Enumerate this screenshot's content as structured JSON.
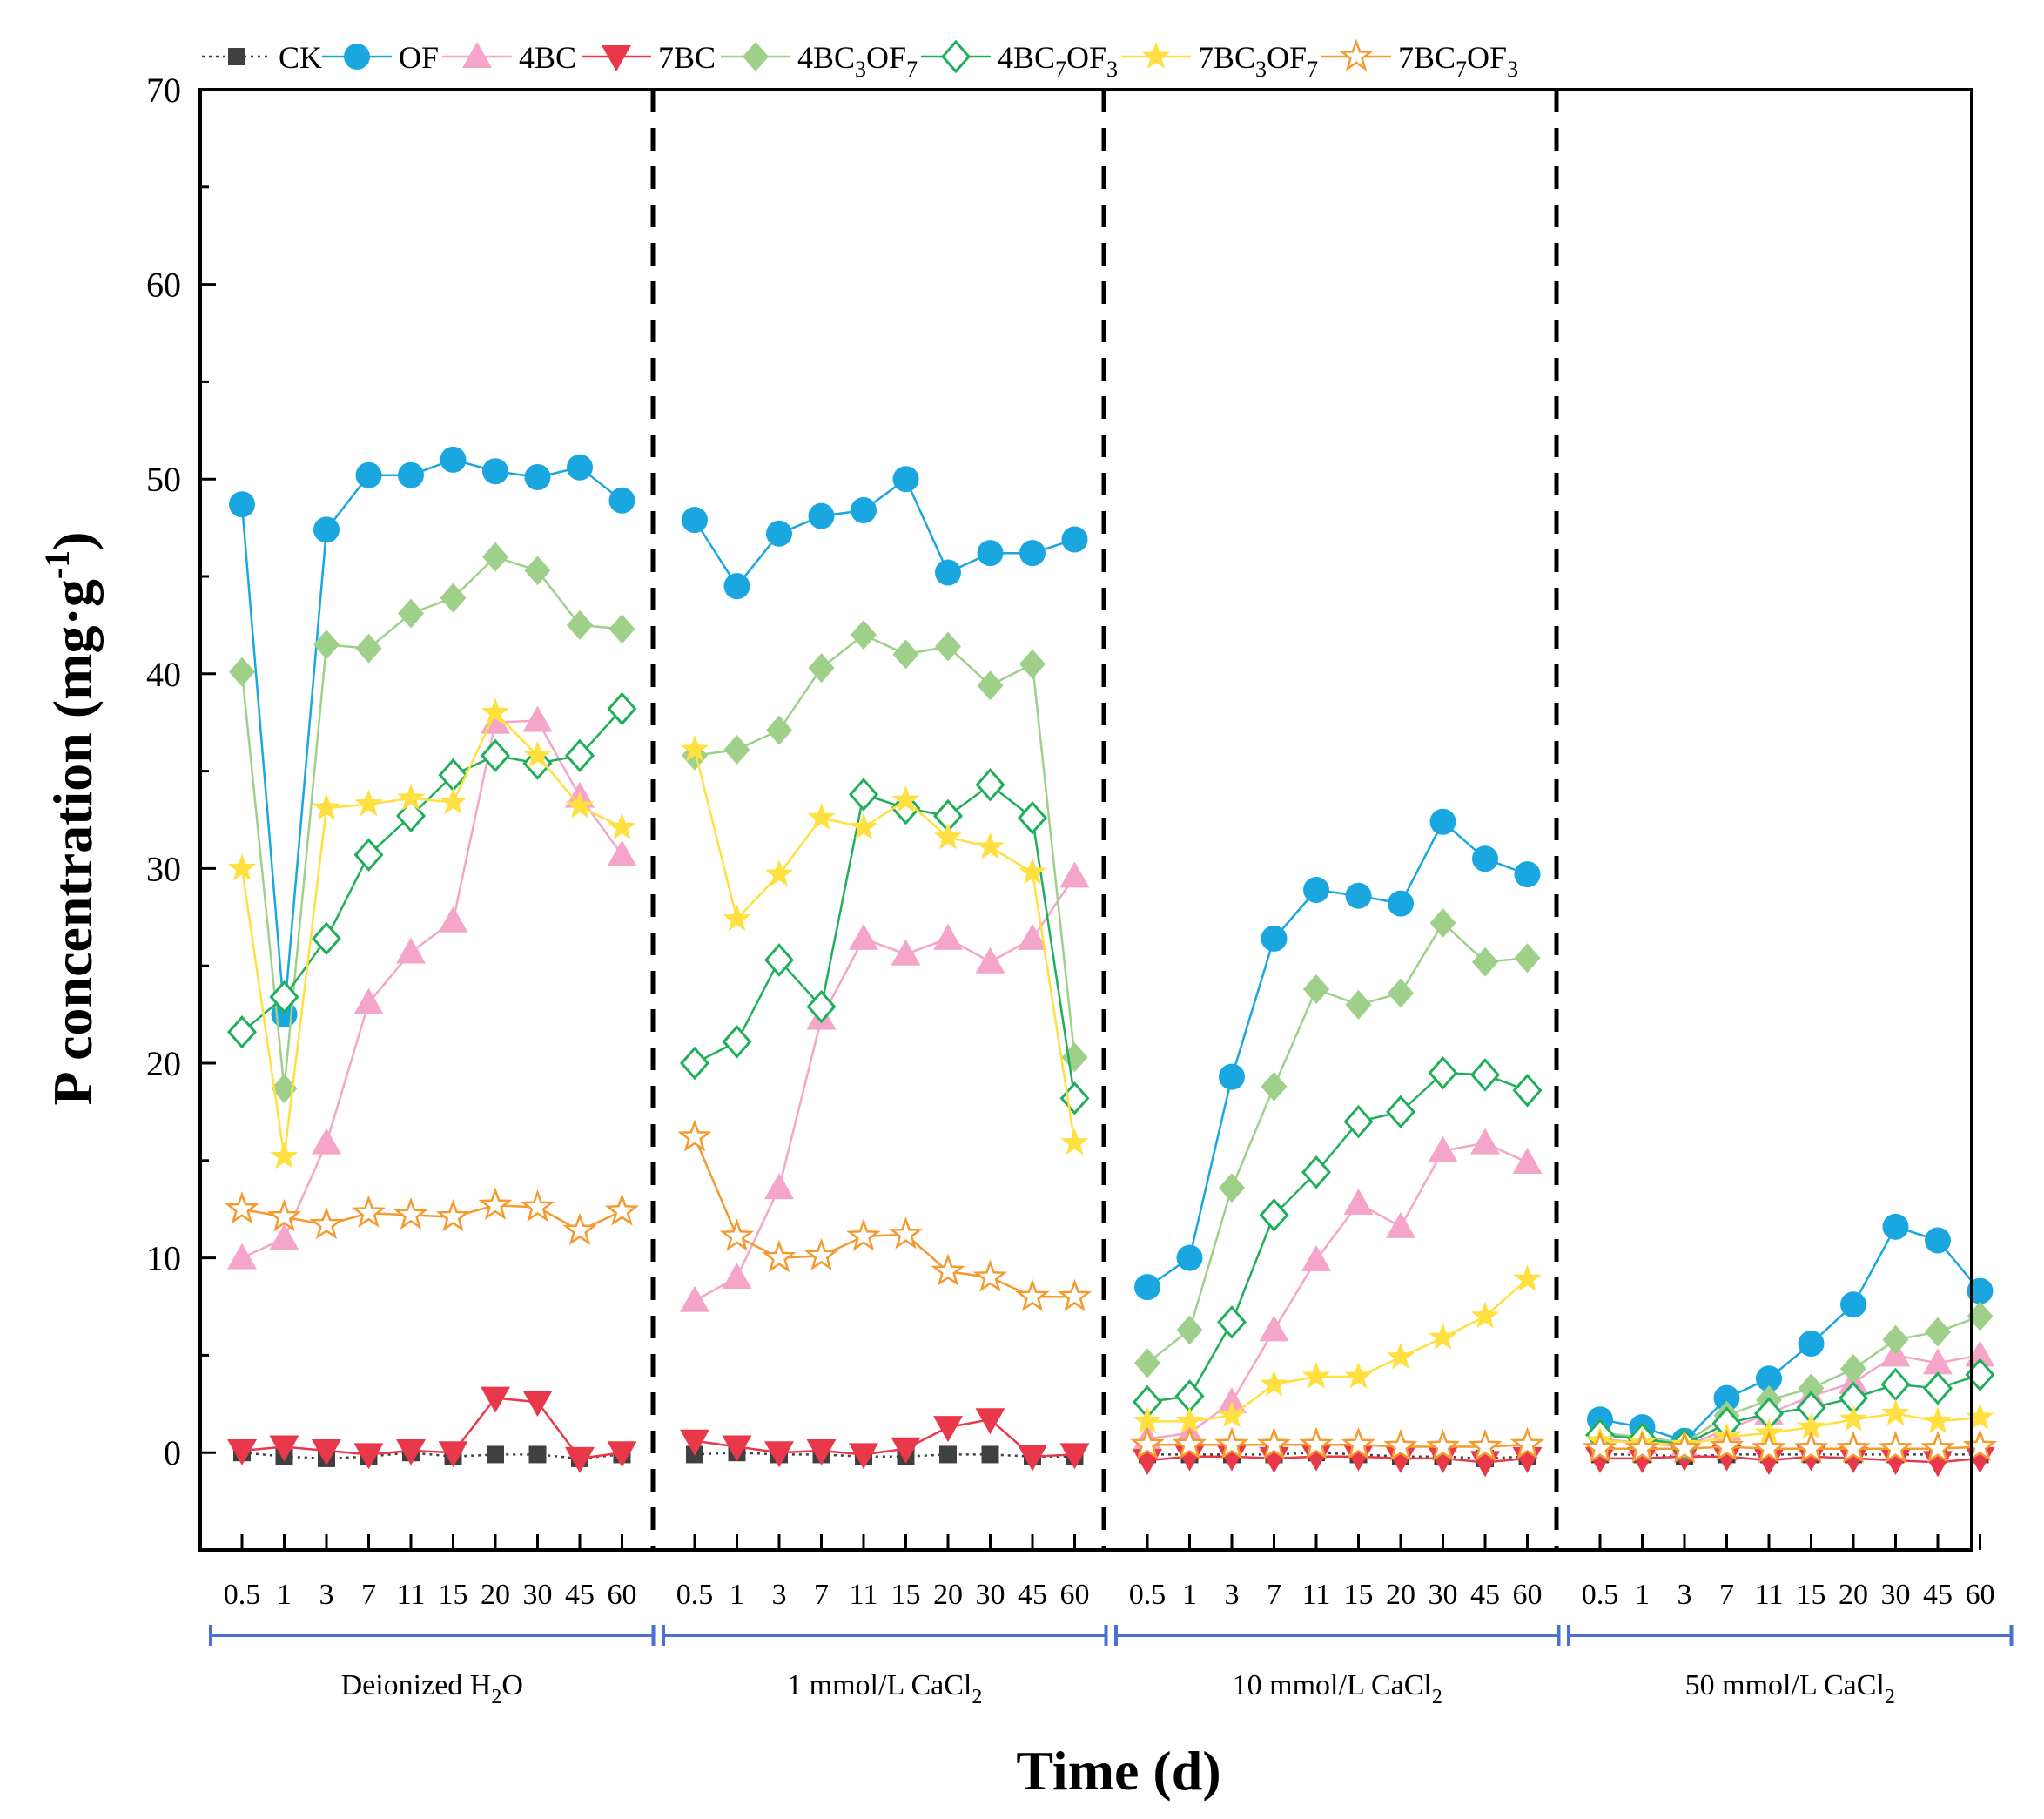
{
  "chart_data": {
    "type": "line",
    "ylabel": "P concentration (mg·g⁻¹)",
    "ylabel_main": "P concentration (mg·g",
    "ylabel_sup": "-1",
    "ylabel_end": ")",
    "xlabel": "Time (d)",
    "ylim": [
      -5,
      70
    ],
    "yticks": [
      0,
      10,
      20,
      30,
      40,
      50,
      60,
      70
    ],
    "x_tick_labels": [
      "0.5",
      "1",
      "3",
      "7",
      "11",
      "15",
      "20",
      "30",
      "45",
      "60"
    ],
    "groups": [
      {
        "label_main": "Deionized H",
        "label_sub": "2",
        "label_end": "O"
      },
      {
        "label_main": "1 mmol/L CaCl",
        "label_sub": "2",
        "label_end": ""
      },
      {
        "label_main": "10 mmol/L CaCl",
        "label_sub": "2",
        "label_end": ""
      },
      {
        "label_main": "50 mmol/L CaCl",
        "label_sub": "2",
        "label_end": ""
      }
    ],
    "legend": [
      {
        "parts": [
          [
            "CK",
            ""
          ]
        ]
      },
      {
        "parts": [
          [
            "OF",
            ""
          ]
        ]
      },
      {
        "parts": [
          [
            "4BC",
            ""
          ]
        ]
      },
      {
        "parts": [
          [
            "7BC",
            ""
          ]
        ]
      },
      {
        "parts": [
          [
            "4BC",
            ""
          ],
          [
            "3",
            "sub"
          ],
          [
            "OF",
            ""
          ],
          [
            "7",
            "sub"
          ]
        ]
      },
      {
        "parts": [
          [
            "4BC",
            ""
          ],
          [
            "7",
            "sub"
          ],
          [
            "OF",
            ""
          ],
          [
            "3",
            "sub"
          ]
        ]
      },
      {
        "parts": [
          [
            "7BC",
            ""
          ],
          [
            "3",
            "sub"
          ],
          [
            "OF",
            ""
          ],
          [
            "7",
            "sub"
          ]
        ]
      },
      {
        "parts": [
          [
            "7BC",
            ""
          ],
          [
            "7",
            "sub"
          ],
          [
            "OF",
            ""
          ],
          [
            "3",
            "sub"
          ]
        ]
      }
    ],
    "series": [
      {
        "name": "CK",
        "color": "#404040",
        "marker": "square",
        "dash": "dotted",
        "values": [
          [
            0.0,
            -0.2,
            -0.3,
            -0.2,
            0.0,
            -0.2,
            -0.1,
            -0.1,
            -0.3,
            -0.1
          ],
          [
            -0.1,
            0.0,
            -0.1,
            -0.1,
            -0.2,
            -0.2,
            -0.1,
            -0.1,
            -0.2,
            -0.2
          ],
          [
            -0.1,
            -0.1,
            -0.1,
            -0.1,
            0.0,
            -0.1,
            -0.2,
            -0.2,
            -0.3,
            -0.2
          ],
          [
            -0.1,
            -0.1,
            -0.2,
            -0.1,
            -0.1,
            -0.1,
            -0.1,
            -0.1,
            -0.1,
            -0.1
          ]
        ]
      },
      {
        "name": "OF",
        "color": "#1AA7E0",
        "marker": "circle",
        "dash": "solid",
        "values": [
          [
            48.7,
            22.5,
            47.4,
            50.2,
            50.2,
            51.0,
            50.4,
            50.1,
            50.6,
            48.9
          ],
          [
            47.9,
            44.5,
            47.2,
            48.1,
            48.4,
            50.0,
            45.2,
            46.2,
            46.2,
            46.9
          ],
          [
            8.5,
            10.0,
            19.3,
            26.4,
            28.9,
            28.6,
            28.2,
            32.4,
            30.5,
            29.7
          ],
          [
            1.7,
            1.3,
            0.6,
            2.8,
            3.8,
            5.6,
            7.6,
            11.6,
            10.9,
            8.3
          ]
        ]
      },
      {
        "name": "4BC",
        "color": "#F5A6C8",
        "marker": "triangle-up",
        "dash": "solid",
        "values": [
          [
            10.0,
            11.0,
            15.9,
            23.1,
            25.7,
            27.3,
            37.5,
            37.6,
            33.7,
            30.7
          ],
          [
            7.8,
            9.0,
            13.6,
            22.3,
            26.4,
            25.6,
            26.4,
            25.2,
            26.4,
            29.6
          ],
          [
            0.7,
            1.0,
            2.6,
            6.3,
            9.9,
            12.8,
            11.6,
            15.5,
            15.9,
            14.9
          ],
          [
            0.7,
            0.5,
            0.3,
            1.2,
            2.0,
            2.9,
            3.6,
            5.0,
            4.6,
            5.0
          ]
        ]
      },
      {
        "name": "7BC",
        "color": "#E8384A",
        "marker": "triangle-down",
        "dash": "solid",
        "values": [
          [
            0.1,
            0.3,
            0.1,
            -0.1,
            0.1,
            0.0,
            2.8,
            2.6,
            -0.3,
            0.0
          ],
          [
            0.6,
            0.3,
            0.0,
            0.1,
            -0.1,
            0.2,
            1.3,
            1.7,
            -0.2,
            -0.1
          ],
          [
            -0.4,
            -0.2,
            -0.2,
            -0.3,
            -0.2,
            -0.2,
            -0.3,
            -0.3,
            -0.5,
            -0.3
          ],
          [
            -0.3,
            -0.3,
            -0.2,
            -0.2,
            -0.4,
            -0.2,
            -0.3,
            -0.4,
            -0.5,
            -0.3
          ]
        ]
      },
      {
        "name": "4BC3OF7",
        "color": "#9FD08A",
        "marker": "diamond",
        "dash": "solid",
        "values": [
          [
            40.1,
            18.7,
            41.5,
            41.3,
            43.1,
            43.9,
            46.0,
            45.3,
            42.5,
            42.3
          ],
          [
            35.8,
            36.1,
            37.1,
            40.3,
            42.0,
            41.0,
            41.4,
            39.4,
            40.5,
            20.3
          ],
          [
            4.6,
            6.3,
            13.6,
            18.8,
            23.8,
            23.0,
            23.6,
            27.2,
            25.2,
            25.4
          ],
          [
            1.0,
            0.8,
            0.5,
            1.9,
            2.7,
            3.3,
            4.3,
            5.8,
            6.2,
            7.0
          ]
        ]
      },
      {
        "name": "4BC7OF3",
        "color": "#1FAF5A",
        "marker": "diamond-open",
        "dash": "solid",
        "values": [
          [
            21.6,
            23.4,
            26.4,
            30.7,
            32.7,
            34.8,
            35.8,
            35.4,
            35.8,
            38.2
          ],
          [
            20.0,
            21.1,
            25.3,
            22.9,
            33.8,
            33.1,
            32.7,
            34.3,
            32.6,
            18.2
          ],
          [
            2.6,
            2.9,
            6.7,
            12.2,
            14.4,
            17.0,
            17.5,
            19.5,
            19.4,
            18.6
          ],
          [
            0.9,
            0.7,
            0.4,
            1.5,
            2.0,
            2.3,
            2.8,
            3.5,
            3.3,
            4.0
          ]
        ]
      },
      {
        "name": "7BC3OF7",
        "color": "#FFE040",
        "marker": "star",
        "dash": "solid",
        "values": [
          [
            30.0,
            15.2,
            33.1,
            33.3,
            33.6,
            33.4,
            38.0,
            35.8,
            33.2,
            32.1
          ],
          [
            36.1,
            27.4,
            29.7,
            32.6,
            32.1,
            33.5,
            31.6,
            31.1,
            29.8,
            15.9
          ],
          [
            1.6,
            1.6,
            1.9,
            3.5,
            3.9,
            3.9,
            4.9,
            5.9,
            7.0,
            8.9
          ],
          [
            0.6,
            0.5,
            0.4,
            0.8,
            1.0,
            1.3,
            1.7,
            2.0,
            1.6,
            1.8
          ]
        ]
      },
      {
        "name": "7BC7OF3",
        "color": "#F59A2E",
        "marker": "star-open",
        "dash": "solid",
        "values": [
          [
            12.5,
            12.1,
            11.7,
            12.3,
            12.2,
            12.1,
            12.7,
            12.6,
            11.4,
            12.4
          ],
          [
            16.2,
            11.1,
            10.0,
            10.1,
            11.1,
            11.2,
            9.3,
            9.0,
            8.0,
            8.0
          ],
          [
            0.4,
            0.4,
            0.4,
            0.4,
            0.4,
            0.4,
            0.3,
            0.3,
            0.3,
            0.4
          ],
          [
            0.2,
            0.2,
            0.2,
            0.3,
            0.2,
            0.2,
            0.2,
            0.2,
            0.2,
            0.3
          ]
        ]
      }
    ]
  }
}
